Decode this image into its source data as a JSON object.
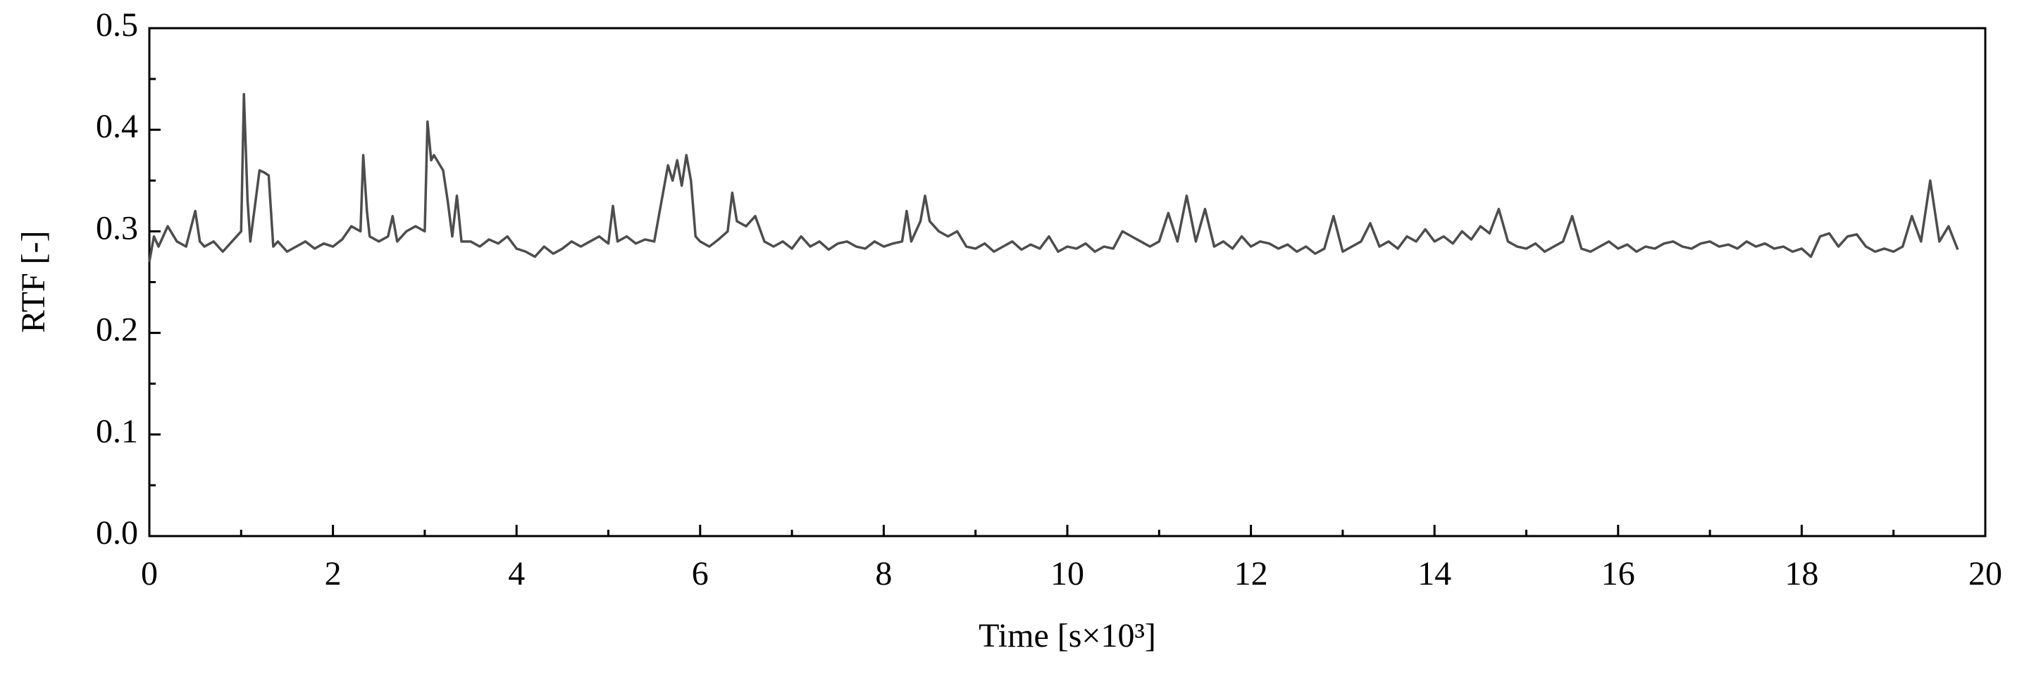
{
  "chart_data": {
    "type": "line",
    "xlabel": "Time [s×10³]",
    "ylabel": "RTF [-]",
    "xlim": [
      0,
      20
    ],
    "ylim": [
      0,
      0.5
    ],
    "xticks": [
      0,
      2,
      4,
      6,
      8,
      10,
      12,
      14,
      16,
      18,
      20
    ],
    "yticks": [
      {
        "value": 0,
        "label": "0.0"
      },
      0.1,
      0.2,
      0.3,
      0.4,
      0.5
    ],
    "xminorticks": [
      1,
      3,
      5,
      7,
      9,
      11,
      13,
      15,
      17,
      19
    ],
    "yminorticks": [
      0.05,
      0.15,
      0.25,
      0.35,
      0.45
    ],
    "grid": false,
    "series": [
      {
        "color": "#4d4d4d",
        "x": [
          0,
          0.05,
          0.1,
          0.2,
          0.3,
          0.4,
          0.5,
          0.55,
          0.6,
          0.7,
          0.8,
          0.9,
          1.0,
          1.03,
          1.07,
          1.1,
          1.2,
          1.25,
          1.3,
          1.35,
          1.4,
          1.5,
          1.6,
          1.7,
          1.8,
          1.9,
          2.0,
          2.1,
          2.2,
          2.3,
          2.33,
          2.37,
          2.4,
          2.5,
          2.6,
          2.65,
          2.7,
          2.8,
          2.9,
          3.0,
          3.03,
          3.07,
          3.1,
          3.2,
          3.25,
          3.3,
          3.35,
          3.4,
          3.5,
          3.6,
          3.7,
          3.8,
          3.9,
          4.0,
          4.1,
          4.2,
          4.3,
          4.4,
          4.5,
          4.6,
          4.7,
          4.8,
          4.9,
          5.0,
          5.05,
          5.1,
          5.2,
          5.3,
          5.4,
          5.5,
          5.6,
          5.65,
          5.7,
          5.75,
          5.8,
          5.85,
          5.9,
          5.95,
          6.0,
          6.1,
          6.2,
          6.3,
          6.35,
          6.4,
          6.5,
          6.6,
          6.7,
          6.8,
          6.9,
          7.0,
          7.1,
          7.2,
          7.3,
          7.4,
          7.5,
          7.6,
          7.7,
          7.8,
          7.9,
          8.0,
          8.1,
          8.2,
          8.25,
          8.3,
          8.4,
          8.45,
          8.5,
          8.6,
          8.7,
          8.8,
          8.9,
          9.0,
          9.1,
          9.2,
          9.3,
          9.4,
          9.5,
          9.6,
          9.7,
          9.8,
          9.9,
          10.0,
          10.1,
          10.2,
          10.3,
          10.4,
          10.5,
          10.6,
          10.7,
          10.8,
          10.9,
          11.0,
          11.1,
          11.2,
          11.3,
          11.4,
          11.5,
          11.6,
          11.7,
          11.8,
          11.9,
          12.0,
          12.1,
          12.2,
          12.3,
          12.4,
          12.5,
          12.6,
          12.7,
          12.8,
          12.9,
          13.0,
          13.1,
          13.2,
          13.3,
          13.4,
          13.5,
          13.6,
          13.7,
          13.8,
          13.9,
          14.0,
          14.1,
          14.2,
          14.3,
          14.4,
          14.5,
          14.6,
          14.7,
          14.8,
          14.9,
          15.0,
          15.1,
          15.2,
          15.3,
          15.4,
          15.5,
          15.6,
          15.7,
          15.8,
          15.9,
          16.0,
          16.1,
          16.2,
          16.3,
          16.4,
          16.5,
          16.6,
          16.7,
          16.8,
          16.9,
          17.0,
          17.1,
          17.2,
          17.3,
          17.4,
          17.5,
          17.6,
          17.7,
          17.8,
          17.9,
          18.0,
          18.1,
          18.2,
          18.3,
          18.4,
          18.5,
          18.6,
          18.7,
          18.8,
          18.9,
          19.0,
          19.1,
          19.2,
          19.3,
          19.4,
          19.5,
          19.6,
          19.7
        ],
        "values": [
          0.27,
          0.295,
          0.285,
          0.305,
          0.29,
          0.285,
          0.32,
          0.29,
          0.285,
          0.29,
          0.28,
          0.29,
          0.3,
          0.435,
          0.33,
          0.29,
          0.36,
          0.358,
          0.355,
          0.285,
          0.29,
          0.28,
          0.285,
          0.29,
          0.283,
          0.288,
          0.285,
          0.292,
          0.305,
          0.3,
          0.375,
          0.32,
          0.295,
          0.29,
          0.295,
          0.315,
          0.29,
          0.3,
          0.305,
          0.3,
          0.408,
          0.37,
          0.375,
          0.36,
          0.33,
          0.295,
          0.335,
          0.29,
          0.29,
          0.285,
          0.292,
          0.288,
          0.295,
          0.283,
          0.28,
          0.275,
          0.285,
          0.278,
          0.283,
          0.29,
          0.285,
          0.29,
          0.295,
          0.288,
          0.325,
          0.29,
          0.295,
          0.288,
          0.292,
          0.29,
          0.34,
          0.365,
          0.35,
          0.37,
          0.345,
          0.375,
          0.35,
          0.295,
          0.29,
          0.285,
          0.292,
          0.3,
          0.338,
          0.31,
          0.305,
          0.315,
          0.29,
          0.285,
          0.29,
          0.283,
          0.295,
          0.285,
          0.29,
          0.282,
          0.288,
          0.29,
          0.285,
          0.283,
          0.29,
          0.285,
          0.288,
          0.29,
          0.32,
          0.29,
          0.31,
          0.335,
          0.31,
          0.3,
          0.295,
          0.3,
          0.285,
          0.283,
          0.288,
          0.28,
          0.285,
          0.29,
          0.282,
          0.287,
          0.283,
          0.295,
          0.28,
          0.285,
          0.283,
          0.288,
          0.28,
          0.285,
          0.283,
          0.3,
          0.295,
          0.29,
          0.285,
          0.29,
          0.318,
          0.29,
          0.335,
          0.29,
          0.322,
          0.285,
          0.29,
          0.283,
          0.295,
          0.285,
          0.29,
          0.288,
          0.283,
          0.287,
          0.28,
          0.285,
          0.278,
          0.283,
          0.315,
          0.28,
          0.285,
          0.29,
          0.308,
          0.285,
          0.29,
          0.283,
          0.295,
          0.29,
          0.302,
          0.29,
          0.295,
          0.288,
          0.3,
          0.292,
          0.305,
          0.298,
          0.322,
          0.29,
          0.285,
          0.283,
          0.288,
          0.28,
          0.285,
          0.29,
          0.315,
          0.283,
          0.28,
          0.285,
          0.29,
          0.283,
          0.287,
          0.28,
          0.285,
          0.283,
          0.288,
          0.29,
          0.285,
          0.283,
          0.288,
          0.29,
          0.285,
          0.287,
          0.283,
          0.29,
          0.285,
          0.288,
          0.283,
          0.285,
          0.28,
          0.283,
          0.275,
          0.295,
          0.298,
          0.285,
          0.295,
          0.297,
          0.285,
          0.28,
          0.283,
          0.28,
          0.285,
          0.315,
          0.29,
          0.35,
          0.29,
          0.305,
          0.282
        ]
      }
    ]
  }
}
